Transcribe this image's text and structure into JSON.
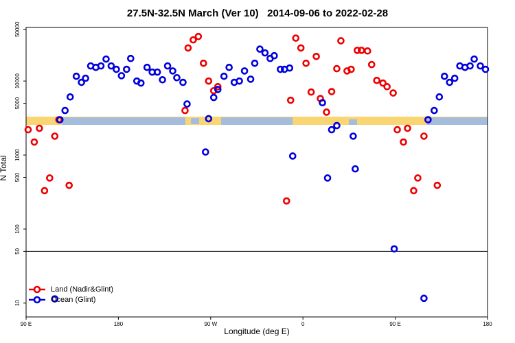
{
  "chart_data": {
    "type": "scatter",
    "title": "27.5N-32.5N March (Ver 10)   2014-09-06 to 2022-02-28",
    "xlabel": "Longitude (deg E)",
    "ylabel": "N Total",
    "xlim": [
      90,
      540
    ],
    "ylim": [
      6.5,
      53000
    ],
    "log_y": true,
    "xticks": [
      {
        "value": 90,
        "label": "90 E"
      },
      180,
      {
        "value": 270,
        "label": "90 W"
      },
      {
        "value": 360,
        "label": "0"
      },
      {
        "value": 450,
        "label": "90 E"
      },
      {
        "value": 540,
        "label": "180"
      }
    ],
    "yticks": [
      10,
      50,
      100,
      500,
      1000,
      5000,
      10000,
      50000
    ],
    "hline": 50,
    "legend": "bottomleft",
    "series": [
      {
        "name": "Land (Nadir&Glint)",
        "color": "#ee0000",
        "x": [
          92,
          98,
          103,
          108,
          113,
          118,
          122,
          132,
          245,
          248,
          253,
          258,
          263,
          268,
          273,
          277,
          344,
          348,
          353,
          358,
          363,
          368,
          373,
          377,
          383,
          388,
          393,
          397,
          403,
          407,
          413,
          417,
          423,
          427,
          432,
          438,
          442,
          448,
          452,
          458,
          462,
          468,
          472,
          478,
          482,
          491
        ],
        "values": [
          2200,
          1500,
          2300,
          330,
          490,
          1800,
          3000,
          390,
          4000,
          28000,
          36000,
          40000,
          17400,
          10000,
          7400,
          8400,
          240,
          5500,
          38000,
          28000,
          17400,
          7100,
          21500,
          5800,
          3800,
          7200,
          14700,
          35000,
          13700,
          14400,
          26000,
          26000,
          25500,
          16700,
          10200,
          9400,
          8400,
          6900,
          2200,
          1500,
          2300,
          330,
          490,
          1800,
          3000,
          390
        ]
      },
      {
        "name": "Ocean (Glint)",
        "color": "#0000dd",
        "x": [
          118,
          123,
          128,
          133,
          139,
          144,
          148,
          153,
          158,
          163,
          168,
          173,
          178,
          183,
          188,
          192,
          198,
          202,
          208,
          213,
          218,
          223,
          228,
          233,
          237,
          243,
          247,
          265,
          268,
          273,
          277,
          283,
          288,
          293,
          298,
          303,
          309,
          313,
          318,
          323,
          328,
          332,
          338,
          342,
          347,
          350,
          379,
          384,
          388,
          393,
          409,
          411,
          449,
          478,
          482,
          488,
          493,
          498,
          503,
          508,
          513,
          518,
          523,
          527,
          533,
          538
        ],
        "values": [
          11.4,
          3000,
          4000,
          6100,
          11600,
          9600,
          10900,
          16000,
          15300,
          16000,
          19800,
          16000,
          14400,
          11800,
          14400,
          20200,
          10000,
          9400,
          15300,
          13200,
          13200,
          10400,
          16000,
          13700,
          11100,
          9600,
          4900,
          1100,
          3100,
          6000,
          7700,
          11600,
          15300,
          9600,
          10000,
          13700,
          10600,
          17400,
          27000,
          24000,
          20200,
          22000,
          14400,
          14400,
          15000,
          970,
          5100,
          490,
          2200,
          2500,
          1800,
          650,
          54,
          11.6,
          3000,
          4000,
          6100,
          11600,
          9600,
          10900,
          16000,
          15300,
          16000,
          19800,
          16000,
          14400
        ]
      }
    ]
  }
}
